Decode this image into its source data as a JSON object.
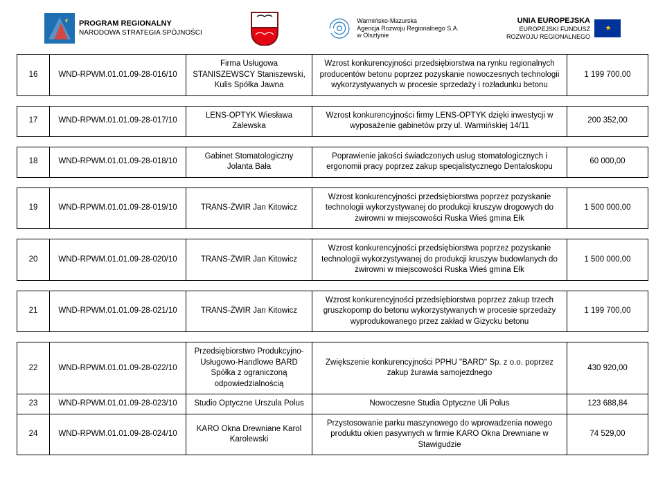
{
  "header": {
    "logo1": {
      "title": "PROGRAM REGIONALNY",
      "sub": "NARODOWA STRATEGIA SPÓJNOŚCI"
    },
    "logo3": {
      "line1": "Warmińsko-Mazurska",
      "line2": "Agencja Rozwoju Regionalnego S.A.",
      "line3": "w Olsztynie"
    },
    "logo4": {
      "l1": "UNIA EUROPEJSKA",
      "l2": "EUROPEJSKI FUNDUSZ",
      "l3": "ROZWOJU REGIONALNEGO"
    }
  },
  "rows": [
    {
      "num": "16",
      "code": "WND-RPWM.01.01.09-28-016/10",
      "firm": "Firma Usługowa STANISZEWSCY Staniszewski, Kulis Spółka Jawna",
      "desc": "Wzrost konkurencyjności przedsiębiorstwa na rynku regionalnych producentów betonu poprzez pozyskanie nowoczesnych technologii wykorzystywanych w procesie sprzedaży i rozładunku betonu",
      "amt": "1 199 700,00"
    },
    {
      "num": "17",
      "code": "WND-RPWM.01.01.09-28-017/10",
      "firm": "LENS-OPTYK Wiesława Zalewska",
      "desc": "Wzrost konkurencyjności firmy LENS-OPTYK dzięki inwestycji w wyposażenie gabinetów przy ul. Warmińskiej 14/11",
      "amt": "200 352,00"
    },
    {
      "num": "18",
      "code": "WND-RPWM.01.01.09-28-018/10",
      "firm": "Gabinet Stomatologiczny Jolanta Bała",
      "desc": "Poprawienie jakości świadczonych usług stomatologicznych i ergonomii pracy poprzez zakup specjalistycznego Dentaloskopu",
      "amt": "60 000,00"
    },
    {
      "num": "19",
      "code": "WND-RPWM.01.01.09-28-019/10",
      "firm": "TRANS-ŻWIR Jan Kitowicz",
      "desc": "Wzrost konkurencyjności przedsiębiorstwa poprzez pozyskanie technologii wykorzystywanej do produkcji kruszyw drogowych do żwirowni w miejscowości Ruska Wieś gmina Ełk",
      "amt": "1 500 000,00"
    },
    {
      "num": "20",
      "code": "WND-RPWM.01.01.09-28-020/10",
      "firm": "TRANS-ŻWIR Jan Kitowicz",
      "desc": "Wzrost konkurencyjności przedsiębiorstwa poprzez pozyskanie technologii wykorzystywanej do produkcji kruszyw budowlanych do żwirowni w miejscowości Ruska Wieś gmina Ełk",
      "amt": "1 500 000,00"
    },
    {
      "num": "21",
      "code": "WND-RPWM.01.01.09-28-021/10",
      "firm": "TRANS-ŻWIR Jan Kitowicz",
      "desc": "Wzrost konkurencyjności przedsiębiorstwa poprzez zakup trzech gruszkopomp do betonu wykorzystywanych w procesie sprzedaży wyprodukowanego przez zakład w Giżycku betonu",
      "amt": "1 199 700,00"
    }
  ],
  "group": [
    {
      "num": "22",
      "code": "WND-RPWM.01.01.09-28-022/10",
      "firm": "Przedsiębiorstwo Produkcyjno-Usługowo-Handlowe BARD Spółka z ograniczoną odpowiedzialnością",
      "desc": "Zwiększenie konkurencyjności PPHU \"BARD\" Sp. z o.o. poprzez zakup żurawia samojezdnego",
      "amt": "430 920,00"
    },
    {
      "num": "23",
      "code": "WND-RPWM.01.01.09-28-023/10",
      "firm": "Studio Optyczne Urszula Polus",
      "desc": "Nowoczesne Studia Optyczne Uli Polus",
      "amt": "123 688,84"
    },
    {
      "num": "24",
      "code": "WND-RPWM.01.01.09-28-024/10",
      "firm": "KARO Okna Drewniane Karol Karolewski",
      "desc": "Przystosowanie parku maszynowego do wprowadzenia nowego produktu okien pasywnych w firmie KARO Okna Drewniane w Stawigudzie",
      "amt": "74 529,00"
    }
  ],
  "colors": {
    "regional_logo": {
      "fill": "#1f6fb3",
      "accent": "#e63b2e"
    },
    "shield": {
      "top": "#ffffff",
      "bottom": "#e30613",
      "border": "#7a1212"
    },
    "spiral": "#2a7fc0",
    "eu_flag_bg": "#003399",
    "eu_flag_star": "#ffcc00",
    "table_border": "#000000"
  }
}
